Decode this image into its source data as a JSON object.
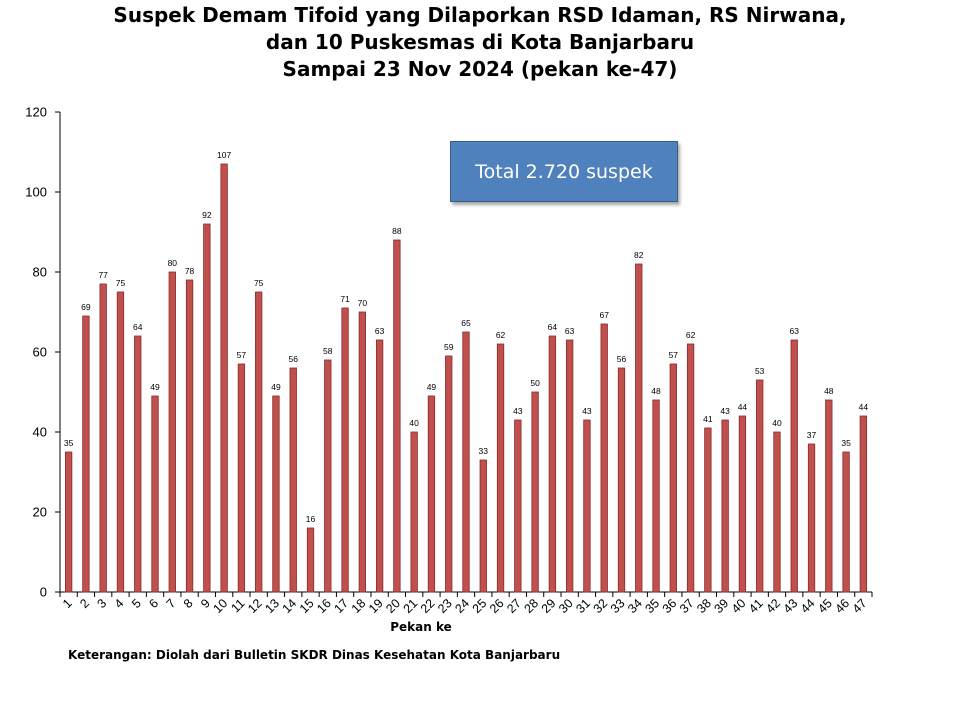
{
  "chart_data": {
    "type": "bar",
    "title": [
      "Suspek Demam Tifoid yang Dilaporkan RSD Idaman, RS Nirwana,",
      "dan 10 Puskesmas di Kota Banjarbaru",
      "Sampai 23 Nov 2024 (pekan ke-47)"
    ],
    "xlabel": "Pekan ke",
    "ylabel": "",
    "categories": [
      "1",
      "2",
      "3",
      "4",
      "5",
      "6",
      "7",
      "8",
      "9",
      "10",
      "11",
      "12",
      "13",
      "14",
      "15",
      "16",
      "17",
      "18",
      "19",
      "20",
      "21",
      "22",
      "23",
      "24",
      "25",
      "26",
      "27",
      "28",
      "29",
      "30",
      "31",
      "32",
      "33",
      "34",
      "35",
      "36",
      "37",
      "38",
      "39",
      "40",
      "41",
      "42",
      "43",
      "44",
      "45",
      "46",
      "47"
    ],
    "values": [
      35,
      69,
      77,
      75,
      64,
      49,
      80,
      78,
      92,
      107,
      57,
      75,
      49,
      56,
      16,
      58,
      71,
      70,
      63,
      88,
      40,
      49,
      59,
      65,
      33,
      62,
      43,
      50,
      64,
      63,
      43,
      67,
      56,
      82,
      48,
      57,
      62,
      41,
      43,
      44,
      53,
      40,
      63,
      37,
      48,
      35,
      44
    ],
    "ylim": [
      0,
      120
    ],
    "yticks": [
      0,
      20,
      40,
      60,
      80,
      100,
      120
    ],
    "grid": false,
    "legend": "none",
    "bar_color": "#c0504d",
    "bar_edge_color": "#8b2a28",
    "annotation": "Total 2.720 suspek",
    "annotation_color": "#4f81bd"
  },
  "footnote": "Keterangan: Diolah dari Bulletin SKDR Dinas Kesehatan Kota Banjarbaru"
}
